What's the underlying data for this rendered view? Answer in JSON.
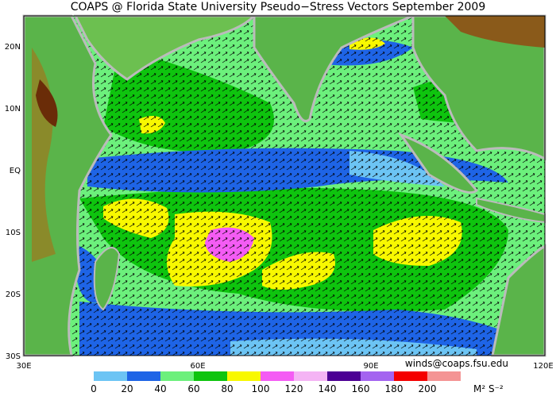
{
  "map": {
    "title": "COAPS @ Florida State University Pseudo−Stress Vectors September 2009",
    "lat_labels": [
      "20N",
      "10N",
      "EQ",
      "10S",
      "20S",
      "30S"
    ],
    "lon_labels": [
      "30E",
      "60E",
      "90E",
      "120E"
    ],
    "credit": "winds@coaps.fsu.edu",
    "legend": {
      "ticks": [
        0,
        20,
        40,
        60,
        80,
        100,
        120,
        140,
        160,
        180,
        200
      ],
      "colors": [
        "#6cc4f4",
        "#1e64e6",
        "#6cf07c",
        "#0ec40e",
        "#f8f800",
        "#f45cf4",
        "#f4b4f4",
        "#4c0094",
        "#a464f0",
        "#f40000",
        "#f49494"
      ],
      "unit": "M² S⁻²"
    }
  }
}
